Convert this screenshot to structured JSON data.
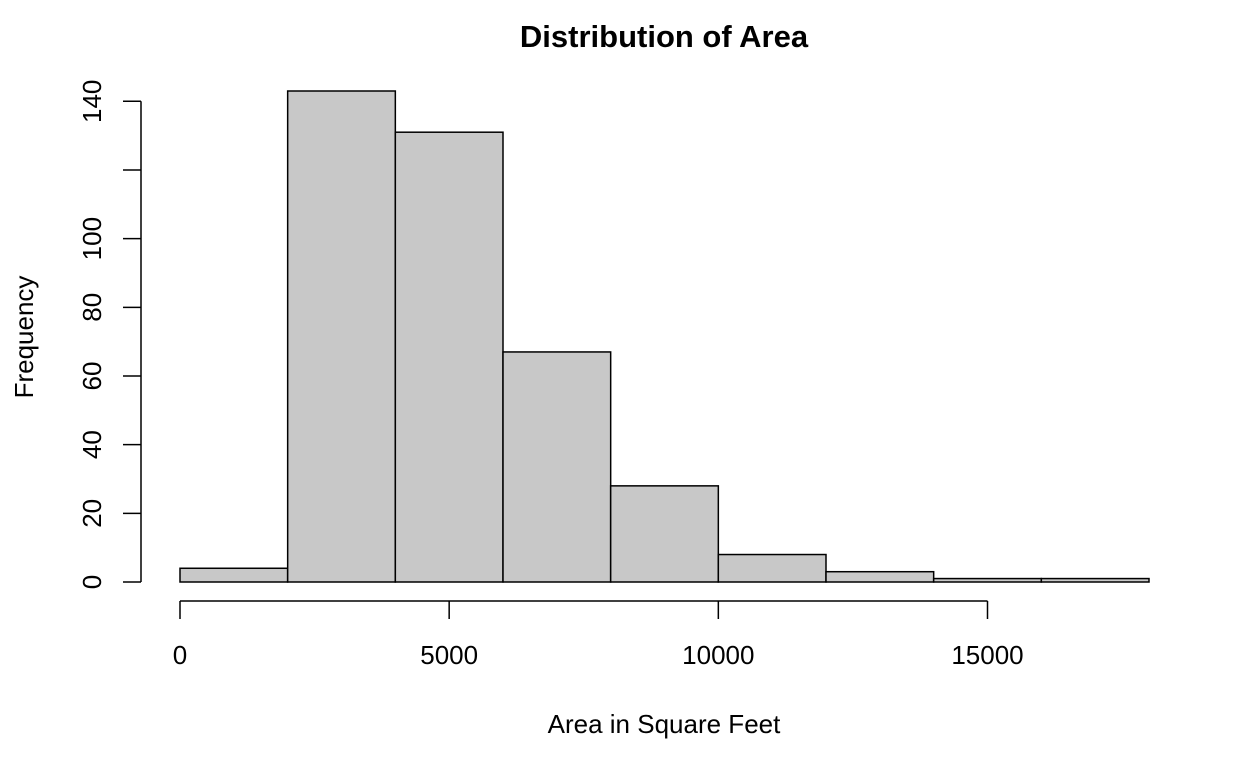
{
  "chart_data": {
    "type": "bar",
    "subtype": "histogram",
    "title": "Distribution of Area",
    "xlabel": "Area in Square Feet",
    "ylabel": "Frequency",
    "bins": [
      {
        "start": 0,
        "end": 2000,
        "count": 4
      },
      {
        "start": 2000,
        "end": 4000,
        "count": 143
      },
      {
        "start": 4000,
        "end": 6000,
        "count": 131
      },
      {
        "start": 6000,
        "end": 8000,
        "count": 67
      },
      {
        "start": 8000,
        "end": 10000,
        "count": 28
      },
      {
        "start": 10000,
        "end": 12000,
        "count": 8
      },
      {
        "start": 12000,
        "end": 14000,
        "count": 3
      },
      {
        "start": 14000,
        "end": 16000,
        "count": 1
      },
      {
        "start": 16000,
        "end": 18000,
        "count": 1
      }
    ],
    "xlim": [
      0,
      18000
    ],
    "ylim": [
      0,
      143
    ],
    "x_ticks": [
      0,
      5000,
      10000,
      15000
    ],
    "x_tick_labels": [
      "0",
      "5000",
      "10000",
      "15000"
    ],
    "y_ticks": [
      0,
      20,
      40,
      60,
      80,
      100,
      120,
      140
    ],
    "y_tick_labels": [
      "0",
      "20",
      "40",
      "60",
      "80",
      "100",
      "",
      "140"
    ],
    "grid": false,
    "legend": "none",
    "colors": {
      "bar_fill": "#c8c8c8",
      "bar_stroke": "#000000",
      "axis": "#000000"
    }
  }
}
